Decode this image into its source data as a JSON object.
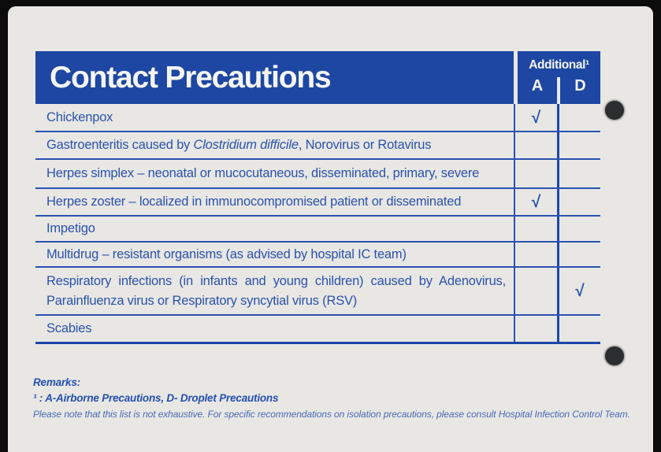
{
  "header": {
    "title": "Contact Precautions",
    "additional_label": "Additional¹",
    "col_a": "A",
    "col_d": "D"
  },
  "table": {
    "check_glyph": "√",
    "rows": [
      {
        "segments": [
          {
            "text": "Chickenpox",
            "italic": false
          }
        ],
        "a": true,
        "d": false
      },
      {
        "segments": [
          {
            "text": "Gastroenteritis caused by ",
            "italic": false
          },
          {
            "text": "Clostridium difficile",
            "italic": true
          },
          {
            "text": ", Norovirus or Rotavirus",
            "italic": false
          }
        ],
        "a": false,
        "d": false
      },
      {
        "segments": [
          {
            "text": "Herpes simplex – neonatal or mucocutaneous, disseminated, primary, severe",
            "italic": false
          }
        ],
        "a": false,
        "d": false
      },
      {
        "segments": [
          {
            "text": "Herpes zoster – localized in immunocompromised patient or disseminated",
            "italic": false
          }
        ],
        "a": true,
        "d": false
      },
      {
        "segments": [
          {
            "text": "Impetigo",
            "italic": false
          }
        ],
        "a": false,
        "d": false
      },
      {
        "segments": [
          {
            "text": "Multidrug – resistant organisms (as advised by hospital IC team)",
            "italic": false
          }
        ],
        "a": false,
        "d": false
      },
      {
        "segments": [
          {
            "text": "Respiratory infections (in infants and young children) caused by Adenovirus, Parainfluenza virus or Respiratory syncytial virus (RSV)",
            "italic": false
          }
        ],
        "a": false,
        "d": true
      },
      {
        "segments": [
          {
            "text": "Scabies",
            "italic": false
          }
        ],
        "a": false,
        "d": false
      }
    ]
  },
  "remarks": {
    "heading": "Remarks:",
    "footnote": "¹ : A-Airborne Precautions, D- Droplet Precautions",
    "note": "Please note that this list is not exhaustive. For specific recommendations on isolation precautions, please consult Hospital Infection Control Team."
  },
  "colors": {
    "header_blue": "#1d47a2",
    "line_blue": "#2a52b0",
    "text_blue": "#2b52aa",
    "card_bg": "#e8e7e4",
    "scan_bg": "#0c0c0c"
  }
}
